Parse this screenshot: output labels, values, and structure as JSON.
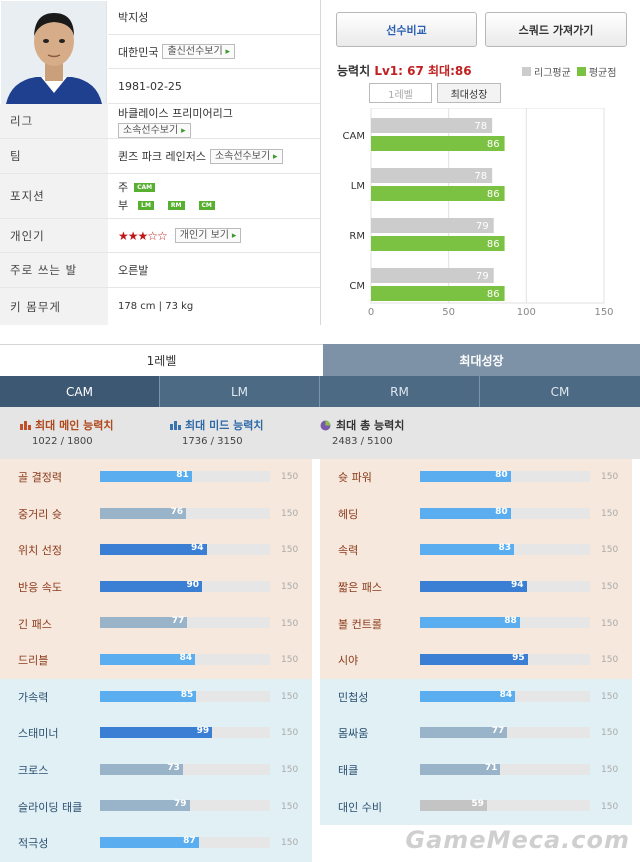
{
  "player": {
    "name": "박지성",
    "nation": "대한민국",
    "nation_btn": "출신선수보기",
    "birth": "1981-02-25",
    "league": "바클레이스 프리미어리그",
    "league_btn": "소속선수보기",
    "team": "퀸즈 파크 레인저스",
    "team_btn": "소속선수보기",
    "pos_main_label": "주",
    "pos_main": [
      "CAM"
    ],
    "pos_sub_label": "부",
    "pos_sub": [
      "LM",
      "RM",
      "CM"
    ],
    "popularity_stars": "★★★☆☆",
    "popularity_rating": 3,
    "popularity_btn": "개인기 보기",
    "foot": "오른발",
    "body": "178 cm | 73 kg"
  },
  "labels": {
    "league": "리그",
    "team": "팀",
    "position": "포지션",
    "popularity": "개인기",
    "foot": "주로 쓰는 발",
    "body": "키 몸무게"
  },
  "buttons": {
    "compare": "선수비교",
    "squad": "스쿼드 가져가기",
    "lv1": "1레벨",
    "max": "최대성장"
  },
  "ability": {
    "prefix": "능력치",
    "values": "Lv1: 67 최대:86",
    "legend_avg": "리그평균",
    "legend_mine": "평균점"
  },
  "chart_data": {
    "type": "bar",
    "orientation": "horizontal",
    "categories": [
      "CAM",
      "LM",
      "RM",
      "CM"
    ],
    "series": [
      {
        "name": "리그평균",
        "values": [
          78,
          78,
          79,
          79
        ],
        "color": "#cccccc"
      },
      {
        "name": "평균점",
        "values": [
          86,
          86,
          86,
          86
        ],
        "color": "#7cc242"
      }
    ],
    "xlim": [
      0,
      150
    ],
    "xticks": [
      0,
      50,
      100,
      150
    ],
    "grid": true,
    "legend": "top-right"
  },
  "tabs": {
    "lv1": "1레벨",
    "max": "최대성장"
  },
  "positions": [
    "CAM",
    "LM",
    "RM",
    "CM"
  ],
  "summary": {
    "main_title": "최대 메인 능력치",
    "main_value": "1022 / 1800",
    "mid_title": "최대 미드 능력치",
    "mid_value": "1736 / 3150",
    "total_title": "최대 총 능력치",
    "total_value": "2483 / 5100"
  },
  "stat_max": "150",
  "stats_left": [
    {
      "name": "골 결정력",
      "value": 81,
      "group": "main"
    },
    {
      "name": "중거리 슛",
      "value": 76,
      "group": "main"
    },
    {
      "name": "위치 선정",
      "value": 94,
      "group": "main"
    },
    {
      "name": "반응 속도",
      "value": 90,
      "group": "main"
    },
    {
      "name": "긴 패스",
      "value": 77,
      "group": "main"
    },
    {
      "name": "드리블",
      "value": 84,
      "group": "main"
    },
    {
      "name": "가속력",
      "value": 85,
      "group": "mid"
    },
    {
      "name": "스태미너",
      "value": 99,
      "group": "mid"
    },
    {
      "name": "크로스",
      "value": 73,
      "group": "mid"
    },
    {
      "name": "슬라이딩 태클",
      "value": 79,
      "group": "mid"
    },
    {
      "name": "적극성",
      "value": 87,
      "group": "mid"
    }
  ],
  "stats_right": [
    {
      "name": "슛 파워",
      "value": 80,
      "group": "main"
    },
    {
      "name": "헤딩",
      "value": 80,
      "group": "main"
    },
    {
      "name": "속력",
      "value": 83,
      "group": "main"
    },
    {
      "name": "짧은 패스",
      "value": 94,
      "group": "main"
    },
    {
      "name": "볼 컨트롤",
      "value": 88,
      "group": "main"
    },
    {
      "name": "시야",
      "value": 95,
      "group": "main"
    },
    {
      "name": "민첩성",
      "value": 84,
      "group": "mid"
    },
    {
      "name": "몸싸움",
      "value": 77,
      "group": "mid"
    },
    {
      "name": "태클",
      "value": 71,
      "group": "mid"
    },
    {
      "name": "대인 수비",
      "value": 59,
      "group": "mid"
    }
  ],
  "colors": {
    "high": "#3a7fd4",
    "mid": "#5aaef0",
    "low": "#99b3c8",
    "lowest": "#c4c4c4",
    "main_bg": "#f6e8dd",
    "mid_bg": "#e1f0f5"
  },
  "watermark": "GameMeca.com"
}
